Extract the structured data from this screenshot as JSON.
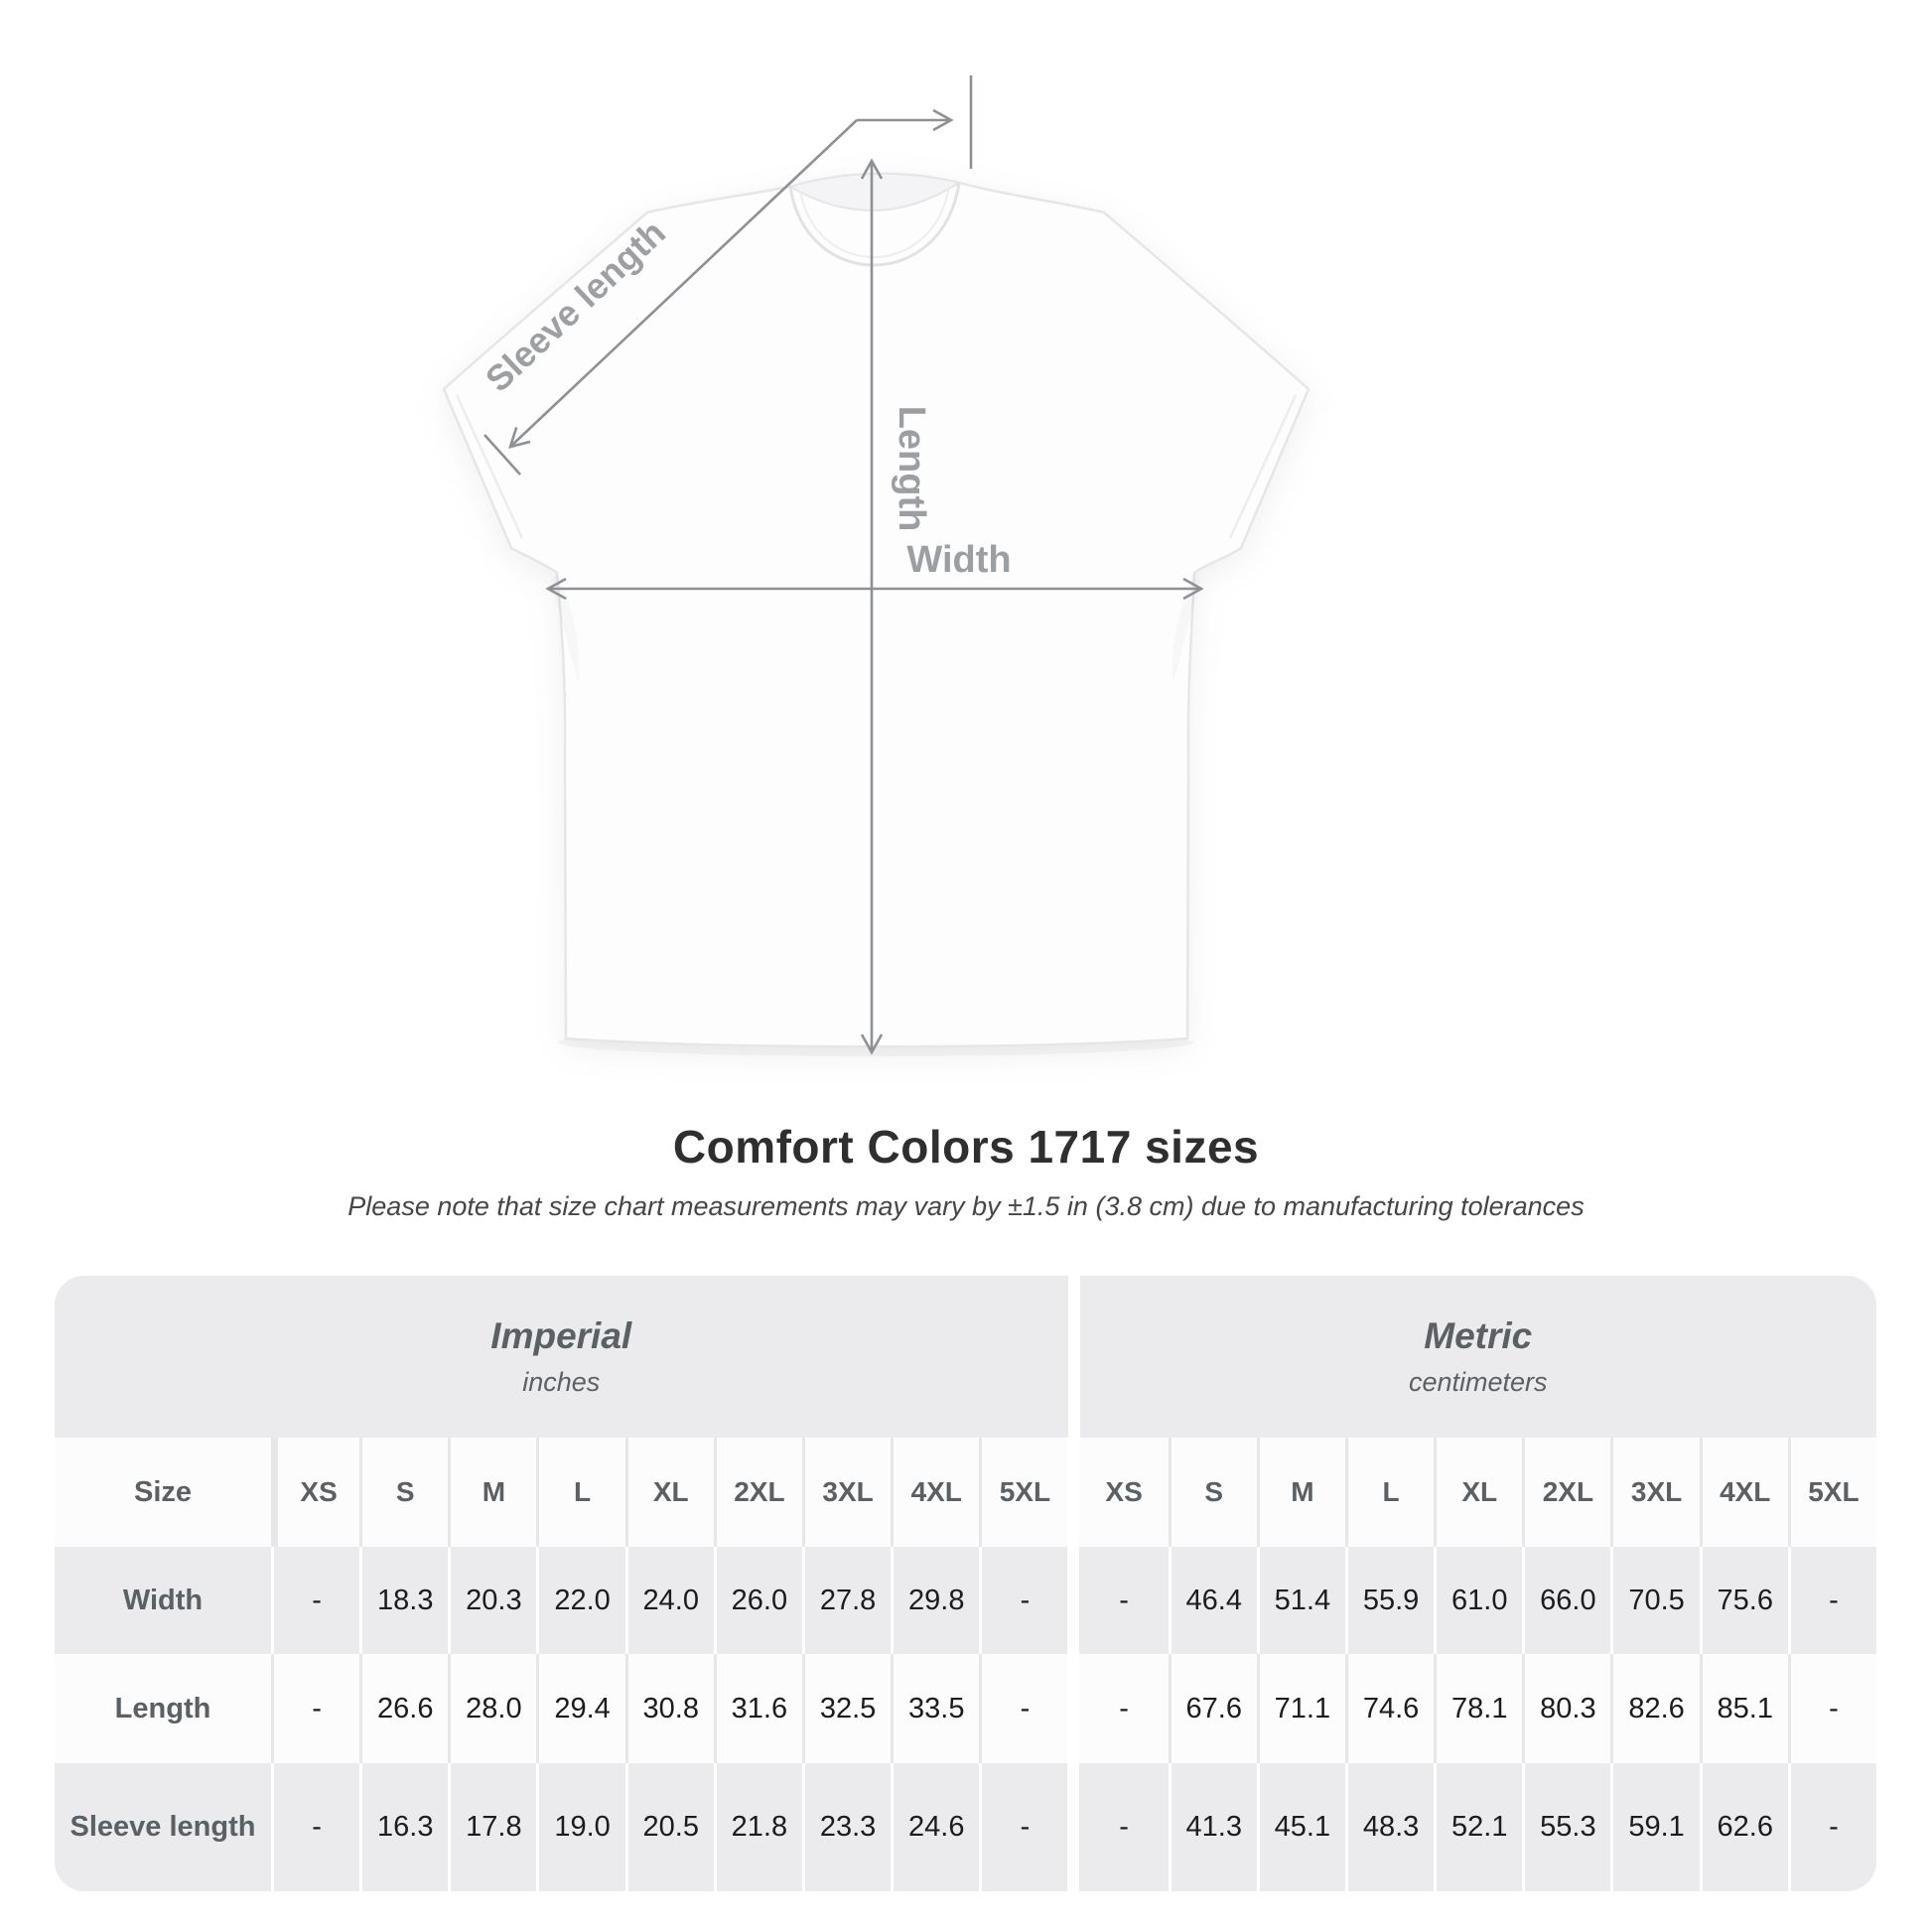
{
  "diagram": {
    "labels": {
      "sleeve": "Sleeve length",
      "length": "Length",
      "width": "Width"
    },
    "arrow_color": "#8d9196",
    "label_color": "#9d9fa2"
  },
  "title": "Comfort Colors 1717 sizes",
  "subtitle": "Please note that size chart measurements may vary by ±1.5 in (3.8 cm) due to manufacturing tolerances",
  "table": {
    "size_label": "Size",
    "groups": [
      {
        "name": "Imperial",
        "unit": "inches"
      },
      {
        "name": "Metric",
        "unit": "centimeters"
      }
    ],
    "sizes": [
      "XS",
      "S",
      "M",
      "L",
      "XL",
      "2XL",
      "3XL",
      "4XL",
      "5XL"
    ],
    "rows": [
      {
        "label": "Width",
        "imperial": [
          "-",
          "18.3",
          "20.3",
          "22.0",
          "24.0",
          "26.0",
          "27.8",
          "29.8",
          "-"
        ],
        "metric": [
          "-",
          "46.4",
          "51.4",
          "55.9",
          "61.0",
          "66.0",
          "70.5",
          "75.6",
          "-"
        ]
      },
      {
        "label": "Length",
        "imperial": [
          "-",
          "26.6",
          "28.0",
          "29.4",
          "30.8",
          "31.6",
          "32.5",
          "33.5",
          "-"
        ],
        "metric": [
          "-",
          "67.6",
          "71.1",
          "74.6",
          "78.1",
          "80.3",
          "82.6",
          "85.1",
          "-"
        ]
      },
      {
        "label": "Sleeve length",
        "imperial": [
          "-",
          "16.3",
          "17.8",
          "19.0",
          "20.5",
          "21.8",
          "23.3",
          "24.6",
          "-"
        ],
        "metric": [
          "-",
          "41.3",
          "45.1",
          "48.3",
          "52.1",
          "55.3",
          "59.1",
          "62.6",
          "-"
        ]
      }
    ]
  },
  "colors": {
    "table_band_gray": "#ebebed",
    "table_band_white": "#fcfcfd",
    "header_text": "#5b6064",
    "value_text": "#1c1c1e",
    "title_text": "#2e2f31",
    "annotation_gray": "#8d9196"
  },
  "chart_data": {
    "type": "table",
    "title": "Comfort Colors 1717 sizes",
    "note": "Please note that size chart measurements may vary by ±1.5 in (3.8 cm) due to manufacturing tolerances",
    "column_groups": [
      "Imperial (inches)",
      "Metric (centimeters)"
    ],
    "sizes": [
      "XS",
      "S",
      "M",
      "L",
      "XL",
      "2XL",
      "3XL",
      "4XL",
      "5XL"
    ],
    "rows": [
      {
        "measurement": "Width",
        "imperial_in": [
          null,
          18.3,
          20.3,
          22.0,
          24.0,
          26.0,
          27.8,
          29.8,
          null
        ],
        "metric_cm": [
          null,
          46.4,
          51.4,
          55.9,
          61.0,
          66.0,
          70.5,
          75.6,
          null
        ]
      },
      {
        "measurement": "Length",
        "imperial_in": [
          null,
          26.6,
          28.0,
          29.4,
          30.8,
          31.6,
          32.5,
          33.5,
          null
        ],
        "metric_cm": [
          null,
          67.6,
          71.1,
          74.6,
          78.1,
          80.3,
          82.6,
          85.1,
          null
        ]
      },
      {
        "measurement": "Sleeve length",
        "imperial_in": [
          null,
          16.3,
          17.8,
          19.0,
          20.5,
          21.8,
          23.3,
          24.6,
          null
        ],
        "metric_cm": [
          null,
          41.3,
          45.1,
          48.3,
          52.1,
          55.3,
          59.1,
          62.6,
          null
        ]
      }
    ]
  }
}
